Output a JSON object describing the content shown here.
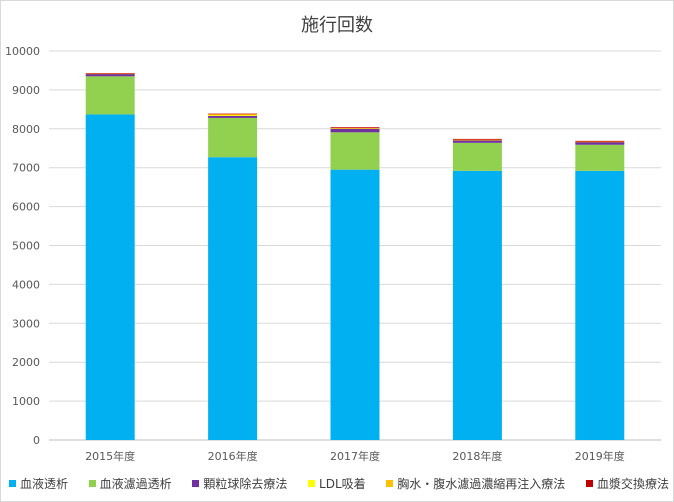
{
  "chart_data": {
    "type": "bar",
    "stacked": true,
    "title": "施行回数",
    "categories": [
      "2015年度",
      "2016年度",
      "2017年度",
      "2018年度",
      "2019年度"
    ],
    "ylim": [
      0,
      10000
    ],
    "yticks": [
      0,
      1000,
      2000,
      3000,
      4000,
      5000,
      6000,
      7000,
      8000,
      9000,
      10000
    ],
    "grid": true,
    "legend_position": "bottom",
    "series": [
      {
        "name": "血液透析",
        "color": "#00b0f0",
        "values": [
          8370,
          7270,
          6950,
          6920,
          6920
        ]
      },
      {
        "name": "血液濾過透析",
        "color": "#92d050",
        "values": [
          980,
          1010,
          960,
          720,
          670
        ]
      },
      {
        "name": "顆粒球除去療法",
        "color": "#7030a0",
        "values": [
          60,
          50,
          90,
          60,
          70
        ]
      },
      {
        "name": "LDL吸着",
        "color": "#ffff00",
        "values": [
          0,
          20,
          0,
          0,
          0
        ]
      },
      {
        "name": "胸水・腹水濾過濃縮再注入療法",
        "color": "#ffc000",
        "values": [
          10,
          30,
          20,
          20,
          10
        ]
      },
      {
        "name": "血漿交換療法",
        "color": "#c00000",
        "values": [
          10,
          10,
          20,
          20,
          20
        ]
      }
    ]
  }
}
